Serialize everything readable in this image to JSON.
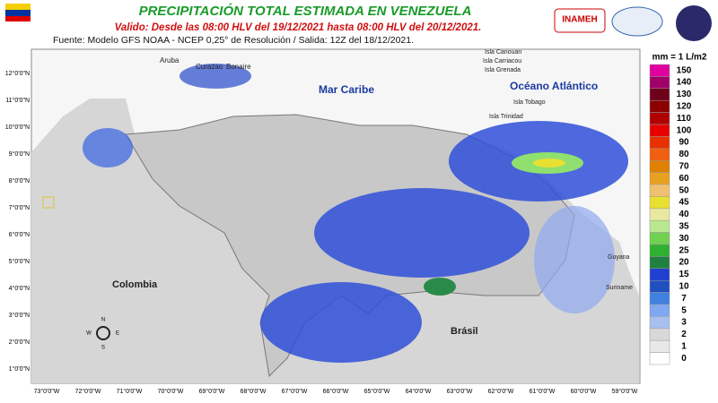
{
  "header": {
    "title": "PRECIPITACIÓN TOTAL ESTIMADA EN VENEZUELA",
    "subtitle": "Valido: Desde las 08:00 HLV del 19/12/2021 hasta 08:00 HLV del 20/12/2021.",
    "source": "Fuente: Modelo GFS NOAA - NCEP 0,25° de Resolución / Salida: 12Z del 18/12/2021.",
    "logo": "INAMEH"
  },
  "legend": {
    "title": "mm = 1 L/m2",
    "items": [
      {
        "value": 150,
        "color": "#e000a0"
      },
      {
        "value": 140,
        "color": "#a0006a"
      },
      {
        "value": 130,
        "color": "#6e0018"
      },
      {
        "value": 120,
        "color": "#8c0000"
      },
      {
        "value": 110,
        "color": "#b00000"
      },
      {
        "value": 100,
        "color": "#e80000"
      },
      {
        "value": 90,
        "color": "#e83000"
      },
      {
        "value": 80,
        "color": "#f06010"
      },
      {
        "value": 70,
        "color": "#e08000"
      },
      {
        "value": 60,
        "color": "#e8a020"
      },
      {
        "value": 50,
        "color": "#f0c070"
      },
      {
        "value": 45,
        "color": "#e8e030"
      },
      {
        "value": 40,
        "color": "#e8e8a0"
      },
      {
        "value": 35,
        "color": "#b8e890"
      },
      {
        "value": 30,
        "color": "#70d050"
      },
      {
        "value": 25,
        "color": "#30b030"
      },
      {
        "value": 20,
        "color": "#208040"
      },
      {
        "value": 15,
        "color": "#2040d0"
      },
      {
        "value": 10,
        "color": "#2050c0"
      },
      {
        "value": 7,
        "color": "#4080e0"
      },
      {
        "value": 5,
        "color": "#80a8f0"
      },
      {
        "value": 3,
        "color": "#a8c0f0"
      },
      {
        "value": 2,
        "color": "#d8d8d8"
      },
      {
        "value": 1,
        "color": "#e8e8e8"
      },
      {
        "value": 0,
        "color": "#ffffff"
      }
    ]
  },
  "map": {
    "labels": {
      "sea": "Mar Caribe",
      "ocean": "Océano Atlántico",
      "colombia": "Colombia",
      "brasil": "Brásil",
      "aruba": "Aruba",
      "curazao": "Curazao",
      "bonaire": "Bonaire",
      "canouan": "Isla Canouan",
      "carriacou": "Isla Carriacou",
      "grenada": "Isla Grenada",
      "tobago": "Isla Tobago",
      "trinidad": "Isla Trinidad",
      "guyana": "Guyana",
      "suriname": "Suriname"
    },
    "compass": [
      "N",
      "S",
      "E",
      "W"
    ],
    "longitudes": [
      "73°0'0\"W",
      "72°0'0\"W",
      "71°0'0\"W",
      "70°0'0\"W",
      "69°0'0\"W",
      "68°0'0\"W",
      "67°0'0\"W",
      "66°0'0\"W",
      "65°0'0\"W",
      "64°0'0\"W",
      "63°0'0\"W",
      "62°0'0\"W",
      "61°0'0\"W",
      "60°0'0\"W",
      "59°0'0\"W"
    ],
    "latitudes": [
      "12°0'0\"N",
      "11°0'0\"N",
      "10°0'0\"N",
      "9°0'0\"N",
      "8°0'0\"N",
      "7°0'0\"N",
      "6°0'0\"N",
      "5°0'0\"N",
      "4°0'0\"N",
      "3°0'0\"N",
      "2°0'0\"N",
      "1°0'0\"N"
    ]
  }
}
